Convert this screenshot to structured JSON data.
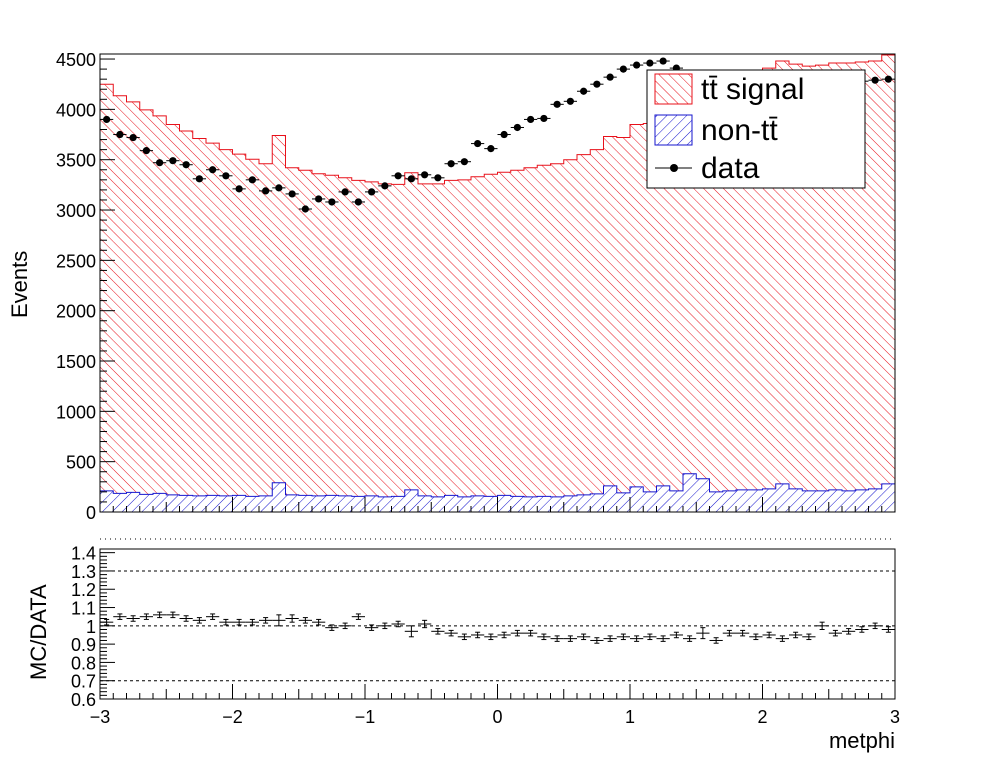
{
  "chart_data": [
    {
      "type": "bar",
      "panel": "main",
      "ylabel": "Events",
      "xlim": [
        -3,
        3
      ],
      "ylim": [
        0,
        4550
      ],
      "yticks": [
        0,
        500,
        1000,
        1500,
        2000,
        2500,
        3000,
        3500,
        4000,
        4500
      ],
      "ytick_labels": [
        "0",
        "500",
        "1000",
        "1500",
        "2000",
        "2500",
        "3000",
        "3500",
        "4000",
        "4500"
      ],
      "bin_edges": [
        -3.0,
        -2.9,
        -2.8,
        -2.7,
        -2.6,
        -2.5,
        -2.4,
        -2.3,
        -2.2,
        -2.1,
        -2.0,
        -1.9,
        -1.8,
        -1.7,
        -1.6,
        -1.5,
        -1.4,
        -1.3,
        -1.2,
        -1.1,
        -1.0,
        -0.9,
        -0.8,
        -0.7,
        -0.6,
        -0.5,
        -0.4,
        -0.3,
        -0.2,
        -0.1,
        0.0,
        0.1,
        0.2,
        0.3,
        0.4,
        0.5,
        0.6,
        0.7,
        0.8,
        0.9,
        1.0,
        1.1,
        1.2,
        1.3,
        1.4,
        1.5,
        1.6,
        1.7,
        1.8,
        1.9,
        2.0,
        2.1,
        2.2,
        2.3,
        2.4,
        2.5,
        2.6,
        2.7,
        2.8,
        2.9,
        3.0
      ],
      "legend_position": "top-right",
      "series": [
        {
          "name": "tt̄ signal",
          "kind": "stacked-hist",
          "color": "#e8101a",
          "values": [
            4040,
            3950,
            3880,
            3820,
            3750,
            3680,
            3620,
            3550,
            3500,
            3440,
            3390,
            3350,
            3300,
            3450,
            3250,
            3230,
            3200,
            3180,
            3160,
            3140,
            3120,
            3110,
            3100,
            3150,
            3100,
            3110,
            3130,
            3150,
            3170,
            3200,
            3210,
            3240,
            3270,
            3290,
            3310,
            3340,
            3380,
            3420,
            3470,
            3530,
            3600,
            3660,
            3730,
            3800,
            3880,
            3950,
            4020,
            4080,
            4120,
            4160,
            4180,
            4200,
            4220,
            4220,
            4230,
            4240,
            4250,
            4250,
            4250,
            4260
          ]
        },
        {
          "name": "non-tt̄",
          "kind": "stacked-hist",
          "color": "#1515ce",
          "values": [
            210,
            185,
            195,
            175,
            185,
            170,
            165,
            160,
            165,
            160,
            165,
            155,
            160,
            290,
            170,
            165,
            160,
            165,
            160,
            155,
            160,
            150,
            155,
            220,
            160,
            150,
            165,
            150,
            160,
            155,
            165,
            155,
            150,
            155,
            150,
            160,
            170,
            180,
            260,
            190,
            250,
            200,
            260,
            210,
            380,
            330,
            200,
            210,
            220,
            220,
            230,
            280,
            230,
            210,
            210,
            220,
            210,
            220,
            230,
            280
          ]
        },
        {
          "name": "data",
          "kind": "points",
          "color": "#000000",
          "values": [
            3900,
            3750,
            3720,
            3590,
            3470,
            3490,
            3450,
            3310,
            3400,
            3340,
            3210,
            3300,
            3190,
            3220,
            3160,
            3010,
            3110,
            3080,
            3180,
            3080,
            3180,
            3240,
            3340,
            3310,
            3350,
            3320,
            3460,
            3480,
            3660,
            3610,
            3750,
            3820,
            3900,
            3910,
            4050,
            4080,
            4180,
            4250,
            4320,
            4400,
            4440,
            4460,
            4480,
            4410,
            4320,
            4260,
            4230,
            4210,
            4200,
            4200,
            4200,
            4200,
            4230,
            4240,
            4250,
            4260,
            4270,
            4280,
            4290,
            4300
          ]
        }
      ],
      "legend": [
        {
          "label": "tt̄ signal",
          "symbol": "hatch-red"
        },
        {
          "label": "non-tt̄",
          "symbol": "hatch-blue"
        },
        {
          "label": "data",
          "symbol": "marker"
        }
      ]
    },
    {
      "type": "scatter",
      "panel": "ratio",
      "ylabel": "MC/DATA",
      "xlabel": "metphi",
      "xlim": [
        -3,
        3
      ],
      "ylim": [
        0.6,
        1.42
      ],
      "yticks": [
        0.6,
        0.7,
        0.8,
        0.9,
        1.0,
        1.1,
        1.2,
        1.3,
        1.4
      ],
      "ytick_labels": [
        "0.6",
        "0.7",
        "0.8",
        "0.9",
        "1",
        "1.1",
        "1.2",
        "1.3",
        "1.4"
      ],
      "xticks": [
        -3,
        -2,
        -1,
        0,
        1,
        2,
        3
      ],
      "xtick_labels": [
        "−3",
        "−2",
        "−1",
        "0",
        "1",
        "2",
        "3"
      ],
      "reference_lines": [
        1.3,
        1.0,
        0.7
      ],
      "values": [
        1.02,
        1.05,
        1.04,
        1.05,
        1.06,
        1.06,
        1.04,
        1.03,
        1.05,
        1.02,
        1.02,
        1.02,
        1.03,
        1.03,
        1.04,
        1.03,
        1.02,
        0.99,
        1.0,
        1.05,
        0.99,
        1.0,
        1.01,
        0.97,
        1.01,
        0.97,
        0.96,
        0.94,
        0.95,
        0.94,
        0.95,
        0.96,
        0.96,
        0.94,
        0.93,
        0.93,
        0.94,
        0.92,
        0.93,
        0.94,
        0.93,
        0.94,
        0.93,
        0.95,
        0.93,
        0.96,
        0.92,
        0.96,
        0.96,
        0.94,
        0.95,
        0.93,
        0.95,
        0.94,
        1.0,
        0.96,
        0.97,
        0.98,
        1.0,
        0.98
      ],
      "errors": [
        0.015,
        0.015,
        0.015,
        0.015,
        0.015,
        0.015,
        0.015,
        0.015,
        0.015,
        0.015,
        0.015,
        0.015,
        0.015,
        0.03,
        0.02,
        0.015,
        0.015,
        0.015,
        0.015,
        0.015,
        0.015,
        0.015,
        0.015,
        0.03,
        0.02,
        0.015,
        0.015,
        0.015,
        0.015,
        0.015,
        0.015,
        0.015,
        0.015,
        0.015,
        0.015,
        0.015,
        0.015,
        0.015,
        0.015,
        0.015,
        0.015,
        0.015,
        0.015,
        0.015,
        0.015,
        0.03,
        0.015,
        0.015,
        0.015,
        0.015,
        0.015,
        0.015,
        0.015,
        0.015,
        0.02,
        0.015,
        0.015,
        0.015,
        0.015,
        0.015
      ]
    }
  ]
}
